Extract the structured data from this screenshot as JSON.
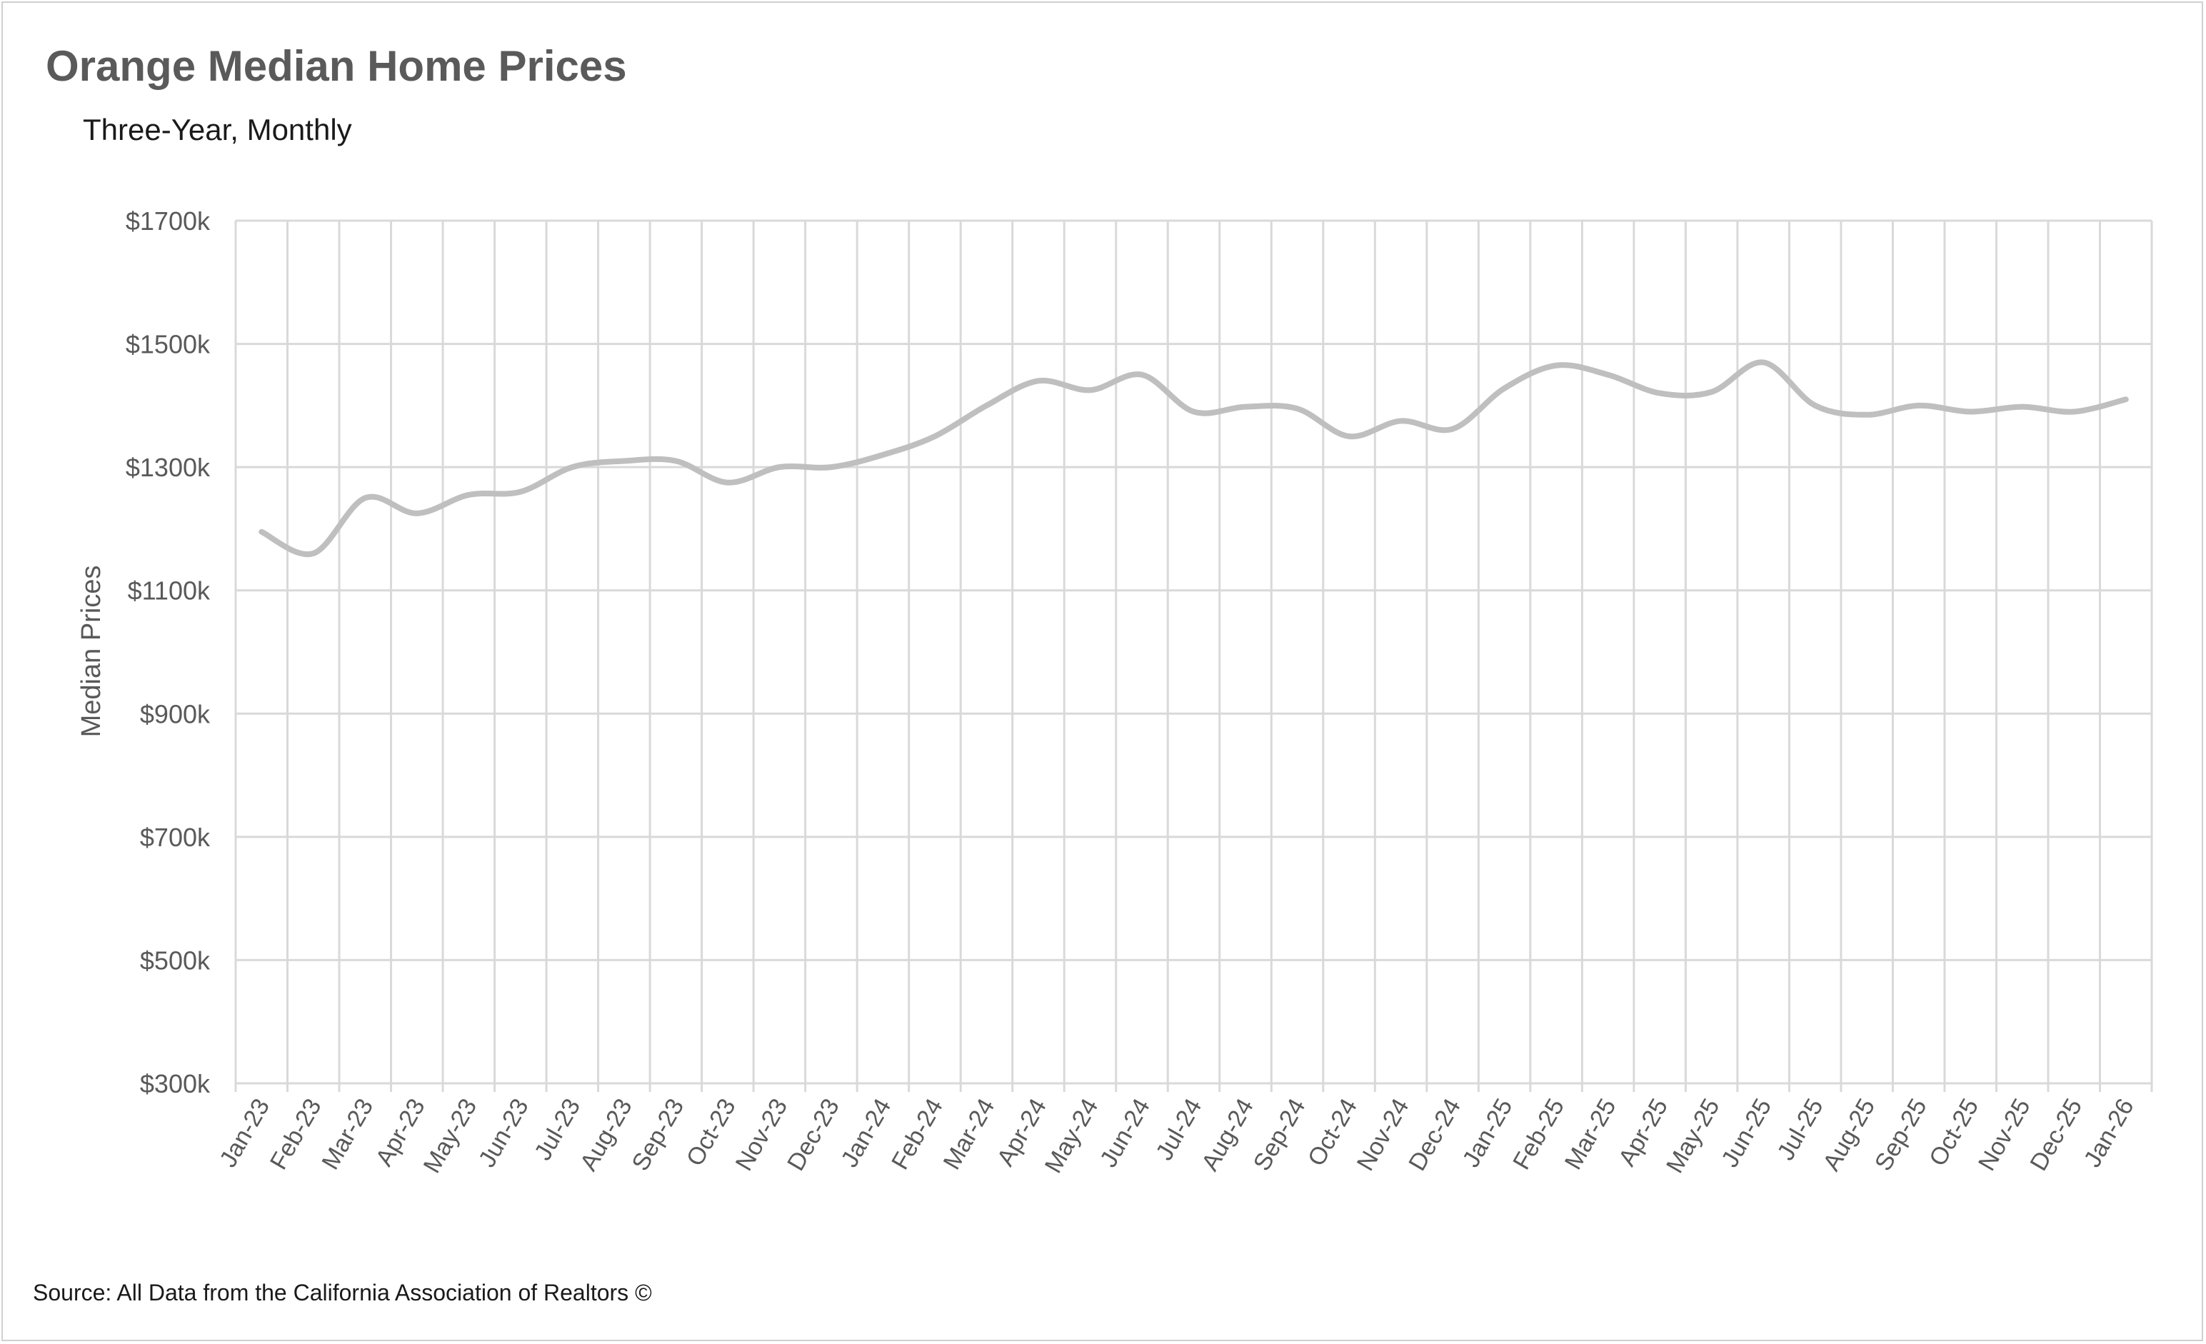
{
  "header": {
    "title": "Orange Median Home Prices",
    "subtitle": "Three-Year, Monthly"
  },
  "footer": {
    "source": "Source: All Data from the California Association of Realtors ©"
  },
  "colors": {
    "line": "#bfbfbf",
    "grid": "#d9d9d9",
    "axis_text": "#595959"
  },
  "chart_data": {
    "type": "line",
    "title": "Orange Median Home Prices",
    "subtitle": "Three-Year, Monthly",
    "ylabel": "Median Prices",
    "xlabel": "",
    "ylim": [
      300,
      1700
    ],
    "yticks": [
      300,
      500,
      700,
      900,
      1100,
      1300,
      1500,
      1700
    ],
    "ytick_labels": [
      "$300k",
      "$500k",
      "$700k",
      "$900k",
      "$1100k",
      "$1300k",
      "$1500k",
      "$1700k"
    ],
    "grid": true,
    "legend": "none",
    "categories": [
      "Jan-23",
      "Feb-23",
      "Mar-23",
      "Apr-23",
      "May-23",
      "Jun-23",
      "Jul-23",
      "Aug-23",
      "Sep-23",
      "Oct-23",
      "Nov-23",
      "Dec-23",
      "Jan-24",
      "Feb-24",
      "Mar-24",
      "Apr-24",
      "May-24",
      "Jun-24",
      "Jul-24",
      "Aug-24",
      "Sep-24",
      "Oct-24",
      "Nov-24",
      "Dec-24",
      "Jan-25",
      "Feb-25",
      "Mar-25",
      "Apr-25",
      "May-25",
      "Jun-25",
      "Jul-25",
      "Aug-25",
      "Sep-25",
      "Oct-25",
      "Nov-25",
      "Dec-25",
      "Jan-26"
    ],
    "series": [
      {
        "values": [
          1195,
          1160,
          1250,
          1225,
          1255,
          1260,
          1300,
          1310,
          1310,
          1275,
          1300,
          1300,
          1320,
          1350,
          1400,
          1440,
          1425,
          1450,
          1390,
          1398,
          1395,
          1350,
          1375,
          1362,
          1428,
          1465,
          1450,
          1420,
          1422,
          1470,
          1400,
          1385,
          1400,
          1390,
          1398,
          1390,
          1410
        ]
      }
    ]
  }
}
